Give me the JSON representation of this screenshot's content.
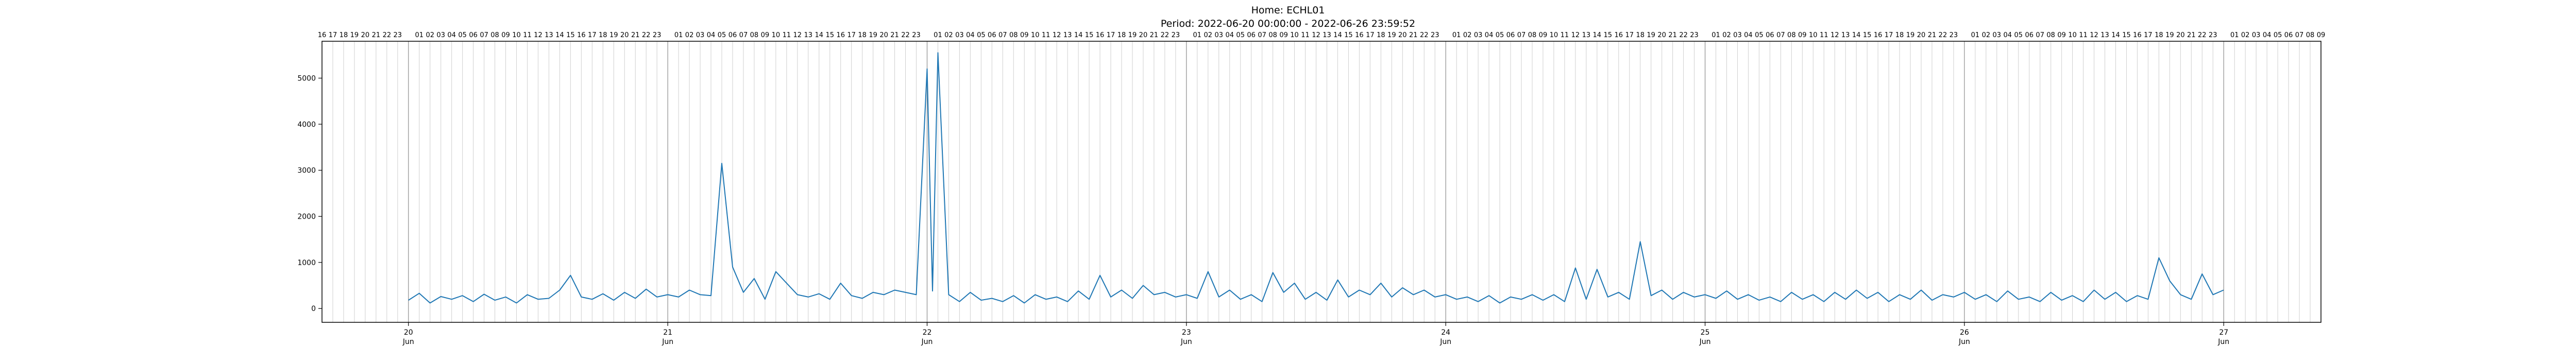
{
  "chart_data": {
    "type": "line",
    "title": "Home: ECHL01",
    "subtitle": "Period: 2022-06-20 00:00:00 - 2022-06-26 23:59:52",
    "xlabel": "",
    "ylabel": "",
    "x_range": [
      "2022-06-19T16:00",
      "2022-06-27T09:00"
    ],
    "ylim": [
      -300,
      5800
    ],
    "y_ticks": [
      0,
      1000,
      2000,
      3000,
      4000,
      5000
    ],
    "x_ticks": [
      {
        "date": "2022-06-20",
        "day": "20",
        "month": "Jun"
      },
      {
        "date": "2022-06-21",
        "day": "21",
        "month": "Jun"
      },
      {
        "date": "2022-06-22",
        "day": "22",
        "month": "Jun"
      },
      {
        "date": "2022-06-23",
        "day": "23",
        "month": "Jun"
      },
      {
        "date": "2022-06-24",
        "day": "24",
        "month": "Jun"
      },
      {
        "date": "2022-06-25",
        "day": "25",
        "month": "Jun"
      },
      {
        "date": "2022-06-26",
        "day": "26",
        "month": "Jun"
      },
      {
        "date": "2022-06-27",
        "day": "27",
        "month": "Jun"
      }
    ],
    "top_hour_labels": true,
    "grid": "vertical hourly lines",
    "series": [
      {
        "color": "#1f77b4",
        "points": [
          [
            "2022-06-20T00:00",
            180
          ],
          [
            "2022-06-20T01:00",
            330
          ],
          [
            "2022-06-20T02:00",
            120
          ],
          [
            "2022-06-20T03:00",
            260
          ],
          [
            "2022-06-20T04:00",
            200
          ],
          [
            "2022-06-20T05:00",
            280
          ],
          [
            "2022-06-20T06:00",
            150
          ],
          [
            "2022-06-20T07:00",
            310
          ],
          [
            "2022-06-20T08:00",
            180
          ],
          [
            "2022-06-20T09:00",
            250
          ],
          [
            "2022-06-20T10:00",
            120
          ],
          [
            "2022-06-20T11:00",
            300
          ],
          [
            "2022-06-20T12:00",
            200
          ],
          [
            "2022-06-20T13:00",
            220
          ],
          [
            "2022-06-20T14:00",
            400
          ],
          [
            "2022-06-20T15:00",
            720
          ],
          [
            "2022-06-20T16:00",
            250
          ],
          [
            "2022-06-20T17:00",
            200
          ],
          [
            "2022-06-20T18:00",
            320
          ],
          [
            "2022-06-20T19:00",
            180
          ],
          [
            "2022-06-20T20:00",
            350
          ],
          [
            "2022-06-20T21:00",
            220
          ],
          [
            "2022-06-20T22:00",
            420
          ],
          [
            "2022-06-20T23:00",
            250
          ],
          [
            "2022-06-21T00:00",
            300
          ],
          [
            "2022-06-21T01:00",
            250
          ],
          [
            "2022-06-21T02:00",
            400
          ],
          [
            "2022-06-21T03:00",
            300
          ],
          [
            "2022-06-21T04:00",
            280
          ],
          [
            "2022-06-21T05:00",
            3150
          ],
          [
            "2022-06-21T06:00",
            900
          ],
          [
            "2022-06-21T07:00",
            350
          ],
          [
            "2022-06-21T08:00",
            650
          ],
          [
            "2022-06-21T09:00",
            200
          ],
          [
            "2022-06-21T10:00",
            800
          ],
          [
            "2022-06-21T11:00",
            550
          ],
          [
            "2022-06-21T12:00",
            300
          ],
          [
            "2022-06-21T13:00",
            250
          ],
          [
            "2022-06-21T14:00",
            320
          ],
          [
            "2022-06-21T15:00",
            200
          ],
          [
            "2022-06-21T16:00",
            550
          ],
          [
            "2022-06-21T17:00",
            280
          ],
          [
            "2022-06-21T18:00",
            220
          ],
          [
            "2022-06-21T19:00",
            350
          ],
          [
            "2022-06-21T20:00",
            300
          ],
          [
            "2022-06-21T21:00",
            400
          ],
          [
            "2022-06-21T22:00",
            350
          ],
          [
            "2022-06-21T23:00",
            300
          ],
          [
            "2022-06-22T00:00",
            5200
          ],
          [
            "2022-06-22T00:30",
            380
          ],
          [
            "2022-06-22T01:00",
            5550
          ],
          [
            "2022-06-22T02:00",
            300
          ],
          [
            "2022-06-22T03:00",
            150
          ],
          [
            "2022-06-22T04:00",
            350
          ],
          [
            "2022-06-22T05:00",
            180
          ],
          [
            "2022-06-22T06:00",
            220
          ],
          [
            "2022-06-22T07:00",
            150
          ],
          [
            "2022-06-22T08:00",
            280
          ],
          [
            "2022-06-22T09:00",
            120
          ],
          [
            "2022-06-22T10:00",
            300
          ],
          [
            "2022-06-22T11:00",
            200
          ],
          [
            "2022-06-22T12:00",
            250
          ],
          [
            "2022-06-22T13:00",
            150
          ],
          [
            "2022-06-22T14:00",
            380
          ],
          [
            "2022-06-22T15:00",
            200
          ],
          [
            "2022-06-22T16:00",
            720
          ],
          [
            "2022-06-22T17:00",
            250
          ],
          [
            "2022-06-22T18:00",
            400
          ],
          [
            "2022-06-22T19:00",
            220
          ],
          [
            "2022-06-22T20:00",
            500
          ],
          [
            "2022-06-22T21:00",
            300
          ],
          [
            "2022-06-22T22:00",
            350
          ],
          [
            "2022-06-22T23:00",
            250
          ],
          [
            "2022-06-23T00:00",
            300
          ],
          [
            "2022-06-23T01:00",
            220
          ],
          [
            "2022-06-23T02:00",
            800
          ],
          [
            "2022-06-23T03:00",
            250
          ],
          [
            "2022-06-23T04:00",
            400
          ],
          [
            "2022-06-23T05:00",
            200
          ],
          [
            "2022-06-23T06:00",
            300
          ],
          [
            "2022-06-23T07:00",
            150
          ],
          [
            "2022-06-23T08:00",
            780
          ],
          [
            "2022-06-23T09:00",
            350
          ],
          [
            "2022-06-23T10:00",
            550
          ],
          [
            "2022-06-23T11:00",
            200
          ],
          [
            "2022-06-23T12:00",
            350
          ],
          [
            "2022-06-23T13:00",
            180
          ],
          [
            "2022-06-23T14:00",
            620
          ],
          [
            "2022-06-23T15:00",
            250
          ],
          [
            "2022-06-23T16:00",
            400
          ],
          [
            "2022-06-23T17:00",
            300
          ],
          [
            "2022-06-23T18:00",
            550
          ],
          [
            "2022-06-23T19:00",
            250
          ],
          [
            "2022-06-23T20:00",
            450
          ],
          [
            "2022-06-23T21:00",
            300
          ],
          [
            "2022-06-23T22:00",
            400
          ],
          [
            "2022-06-23T23:00",
            250
          ],
          [
            "2022-06-24T00:00",
            300
          ],
          [
            "2022-06-24T01:00",
            200
          ],
          [
            "2022-06-24T02:00",
            250
          ],
          [
            "2022-06-24T03:00",
            150
          ],
          [
            "2022-06-24T04:00",
            280
          ],
          [
            "2022-06-24T05:00",
            120
          ],
          [
            "2022-06-24T06:00",
            250
          ],
          [
            "2022-06-24T07:00",
            200
          ],
          [
            "2022-06-24T08:00",
            300
          ],
          [
            "2022-06-24T09:00",
            180
          ],
          [
            "2022-06-24T10:00",
            300
          ],
          [
            "2022-06-24T11:00",
            150
          ],
          [
            "2022-06-24T12:00",
            880
          ],
          [
            "2022-06-24T13:00",
            200
          ],
          [
            "2022-06-24T14:00",
            850
          ],
          [
            "2022-06-24T15:00",
            250
          ],
          [
            "2022-06-24T16:00",
            350
          ],
          [
            "2022-06-24T17:00",
            200
          ],
          [
            "2022-06-24T18:00",
            1450
          ],
          [
            "2022-06-24T19:00",
            280
          ],
          [
            "2022-06-24T20:00",
            400
          ],
          [
            "2022-06-24T21:00",
            200
          ],
          [
            "2022-06-24T22:00",
            350
          ],
          [
            "2022-06-24T23:00",
            250
          ],
          [
            "2022-06-25T00:00",
            300
          ],
          [
            "2022-06-25T01:00",
            220
          ],
          [
            "2022-06-25T02:00",
            380
          ],
          [
            "2022-06-25T03:00",
            200
          ],
          [
            "2022-06-25T04:00",
            300
          ],
          [
            "2022-06-25T05:00",
            180
          ],
          [
            "2022-06-25T06:00",
            250
          ],
          [
            "2022-06-25T07:00",
            150
          ],
          [
            "2022-06-25T08:00",
            350
          ],
          [
            "2022-06-25T09:00",
            200
          ],
          [
            "2022-06-25T10:00",
            300
          ],
          [
            "2022-06-25T11:00",
            150
          ],
          [
            "2022-06-25T12:00",
            350
          ],
          [
            "2022-06-25T13:00",
            200
          ],
          [
            "2022-06-25T14:00",
            400
          ],
          [
            "2022-06-25T15:00",
            220
          ],
          [
            "2022-06-25T16:00",
            350
          ],
          [
            "2022-06-25T17:00",
            150
          ],
          [
            "2022-06-25T18:00",
            300
          ],
          [
            "2022-06-25T19:00",
            200
          ],
          [
            "2022-06-25T20:00",
            400
          ],
          [
            "2022-06-25T21:00",
            180
          ],
          [
            "2022-06-25T22:00",
            300
          ],
          [
            "2022-06-25T23:00",
            250
          ],
          [
            "2022-06-26T00:00",
            350
          ],
          [
            "2022-06-26T01:00",
            200
          ],
          [
            "2022-06-26T02:00",
            300
          ],
          [
            "2022-06-26T03:00",
            150
          ],
          [
            "2022-06-26T04:00",
            380
          ],
          [
            "2022-06-26T05:00",
            200
          ],
          [
            "2022-06-26T06:00",
            250
          ],
          [
            "2022-06-26T07:00",
            150
          ],
          [
            "2022-06-26T08:00",
            350
          ],
          [
            "2022-06-26T09:00",
            180
          ],
          [
            "2022-06-26T10:00",
            280
          ],
          [
            "2022-06-26T11:00",
            150
          ],
          [
            "2022-06-26T12:00",
            400
          ],
          [
            "2022-06-26T13:00",
            200
          ],
          [
            "2022-06-26T14:00",
            350
          ],
          [
            "2022-06-26T15:00",
            150
          ],
          [
            "2022-06-26T16:00",
            280
          ],
          [
            "2022-06-26T17:00",
            200
          ],
          [
            "2022-06-26T18:00",
            1100
          ],
          [
            "2022-06-26T19:00",
            600
          ],
          [
            "2022-06-26T20:00",
            300
          ],
          [
            "2022-06-26T21:00",
            200
          ],
          [
            "2022-06-26T22:00",
            750
          ],
          [
            "2022-06-26T23:00",
            300
          ],
          [
            "2022-06-26T23:59",
            400
          ]
        ]
      }
    ]
  }
}
